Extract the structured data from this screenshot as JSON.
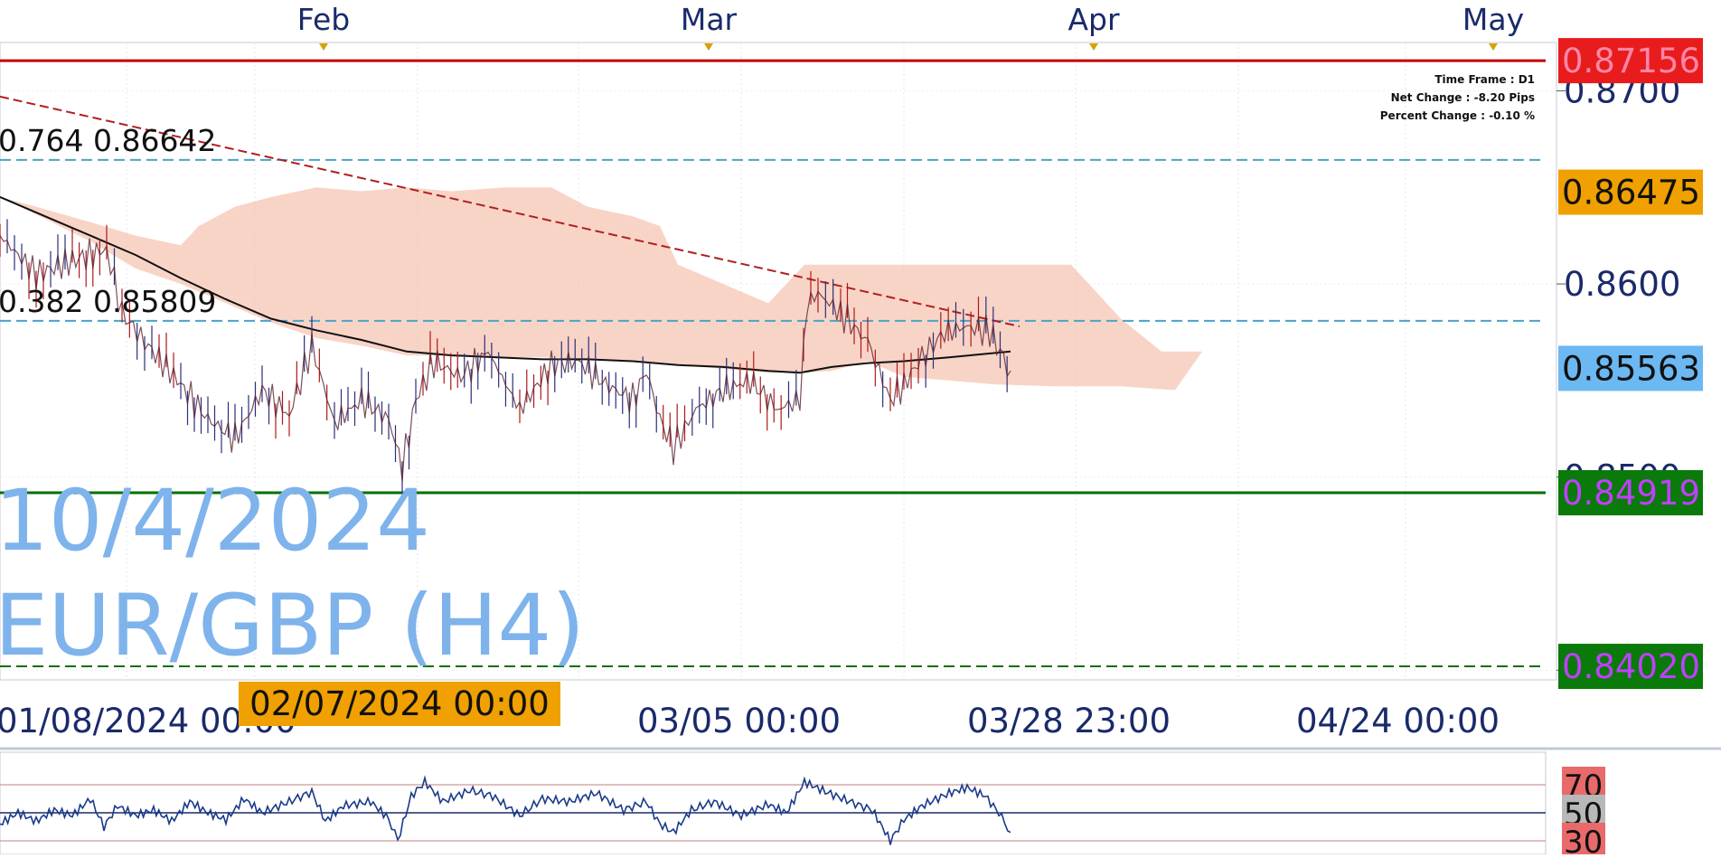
{
  "chart_data": {
    "type": "line",
    "symbol": "EUR/GBP (H4)",
    "date_watermark": "10/4/2024",
    "info": {
      "time_frame": "Time Frame : D1",
      "net_change": "Net Change : -8.20 Pips",
      "percent_change": "Percent Change : -0.10 %"
    },
    "month_labels": [
      "Feb",
      "Mar",
      "Apr",
      "May"
    ],
    "date_ticks": [
      "01/08/2024 00:00",
      "03/05 00:00",
      "03/28 23:00",
      "04/24 00:00"
    ],
    "highlighted_date": "02/07/2024 00:00",
    "price_axis": {
      "min": 0.8395,
      "max": 0.8725,
      "ticks": [
        "0.8400",
        "0.8500",
        "0.8600",
        "0.8700"
      ]
    },
    "price_labels": [
      {
        "value": 0.87156,
        "text": "0.87156",
        "bg": "#e81c1c",
        "fg": "#ff86a6"
      },
      {
        "value": 0.86475,
        "text": "0.86475",
        "bg": "#f0a000",
        "fg": "#111111"
      },
      {
        "value": 0.85563,
        "text": "0.85563",
        "bg": "#6cb8f2",
        "fg": "#111111"
      },
      {
        "value": 0.84919,
        "text": "0.84919",
        "bg": "#0a7a0a",
        "fg": "#c040ff"
      },
      {
        "value": 0.8402,
        "text": "0.84020",
        "bg": "#0a7a0a",
        "fg": "#c040ff"
      }
    ],
    "horizontal_lines": [
      {
        "value": 0.87156,
        "color": "#c00000",
        "style": "solid"
      },
      {
        "value": 0.86642,
        "color": "#4aa3c8",
        "style": "dashed"
      },
      {
        "value": 0.85809,
        "color": "#4aa3c8",
        "style": "dashed"
      },
      {
        "value": 0.84919,
        "color": "#007000",
        "style": "solid"
      },
      {
        "value": 0.8402,
        "color": "#007000",
        "style": "dashed"
      }
    ],
    "fib_labels": [
      {
        "value": 0.86642,
        "text": "0.764 0.86642"
      },
      {
        "value": 0.85809,
        "text": "0.382 0.85809"
      }
    ],
    "trendline": {
      "color": "#b02020",
      "points": [
        [
          0,
          0.8697
        ],
        [
          1128,
          0.8578
        ]
      ]
    },
    "price_series": [
      [
        0,
        0.8625
      ],
      [
        40,
        0.8605
      ],
      [
        80,
        0.8612
      ],
      [
        118,
        0.8618
      ],
      [
        135,
        0.8585
      ],
      [
        160,
        0.857
      ],
      [
        200,
        0.8548
      ],
      [
        230,
        0.853
      ],
      [
        260,
        0.852
      ],
      [
        290,
        0.8545
      ],
      [
        320,
        0.8532
      ],
      [
        345,
        0.8568
      ],
      [
        370,
        0.8528
      ],
      [
        400,
        0.854
      ],
      [
        430,
        0.853
      ],
      [
        445,
        0.8505
      ],
      [
        460,
        0.854
      ],
      [
        480,
        0.856
      ],
      [
        510,
        0.8552
      ],
      [
        540,
        0.8565
      ],
      [
        575,
        0.8535
      ],
      [
        610,
        0.8558
      ],
      [
        640,
        0.856
      ],
      [
        670,
        0.8548
      ],
      [
        700,
        0.854
      ],
      [
        715,
        0.8555
      ],
      [
        730,
        0.853
      ],
      [
        745,
        0.8515
      ],
      [
        770,
        0.8535
      ],
      [
        800,
        0.8545
      ],
      [
        830,
        0.855
      ],
      [
        860,
        0.8535
      ],
      [
        885,
        0.854
      ],
      [
        893,
        0.859
      ],
      [
        905,
        0.8595
      ],
      [
        930,
        0.8585
      ],
      [
        960,
        0.857
      ],
      [
        985,
        0.854
      ],
      [
        1000,
        0.8548
      ],
      [
        1020,
        0.8562
      ],
      [
        1045,
        0.8575
      ],
      [
        1070,
        0.8578
      ],
      [
        1095,
        0.8575
      ],
      [
        1118,
        0.8555
      ]
    ],
    "ma_series": [
      [
        0,
        0.8645
      ],
      [
        50,
        0.8635
      ],
      [
        100,
        0.8625
      ],
      [
        150,
        0.8615
      ],
      [
        200,
        0.8603
      ],
      [
        250,
        0.8592
      ],
      [
        300,
        0.8582
      ],
      [
        350,
        0.8576
      ],
      [
        400,
        0.8571
      ],
      [
        450,
        0.8565
      ],
      [
        500,
        0.8563
      ],
      [
        550,
        0.8562
      ],
      [
        600,
        0.8561
      ],
      [
        650,
        0.8561
      ],
      [
        700,
        0.856
      ],
      [
        750,
        0.8558
      ],
      [
        800,
        0.8557
      ],
      [
        850,
        0.8555
      ],
      [
        885,
        0.8554
      ],
      [
        920,
        0.8557
      ],
      [
        960,
        0.8559
      ],
      [
        1000,
        0.856
      ],
      [
        1050,
        0.8562
      ],
      [
        1118,
        0.8565
      ]
    ],
    "cloud_upper": [
      [
        0,
        0.8645
      ],
      [
        40,
        0.864
      ],
      [
        100,
        0.8632
      ],
      [
        150,
        0.8625
      ],
      [
        200,
        0.862
      ],
      [
        220,
        0.863
      ],
      [
        260,
        0.864
      ],
      [
        300,
        0.8645
      ],
      [
        350,
        0.865
      ],
      [
        400,
        0.8648
      ],
      [
        450,
        0.865
      ],
      [
        500,
        0.8648
      ],
      [
        560,
        0.865
      ],
      [
        610,
        0.865
      ],
      [
        650,
        0.864
      ],
      [
        700,
        0.8635
      ],
      [
        730,
        0.863
      ],
      [
        750,
        0.861
      ],
      [
        800,
        0.86
      ],
      [
        850,
        0.859
      ],
      [
        890,
        0.861
      ],
      [
        1000,
        0.861
      ],
      [
        1100,
        0.861
      ],
      [
        1185,
        0.861
      ],
      [
        1240,
        0.8582
      ],
      [
        1285,
        0.8565
      ],
      [
        1330,
        0.8565
      ],
      [
        1410,
        0.8565
      ]
    ],
    "cloud_lower": [
      [
        0,
        0.8645
      ],
      [
        40,
        0.8636
      ],
      [
        100,
        0.8622
      ],
      [
        150,
        0.8608
      ],
      [
        200,
        0.86
      ],
      [
        250,
        0.859
      ],
      [
        300,
        0.858
      ],
      [
        350,
        0.8572
      ],
      [
        400,
        0.8568
      ],
      [
        450,
        0.8563
      ],
      [
        500,
        0.8563
      ],
      [
        560,
        0.8562
      ],
      [
        610,
        0.8562
      ],
      [
        650,
        0.8561
      ],
      [
        700,
        0.856
      ],
      [
        750,
        0.8558
      ],
      [
        800,
        0.8556
      ],
      [
        850,
        0.8554
      ],
      [
        890,
        0.8554
      ],
      [
        920,
        0.8555
      ],
      [
        960,
        0.856
      ],
      [
        1000,
        0.8552
      ],
      [
        1050,
        0.855
      ],
      [
        1100,
        0.8548
      ],
      [
        1165,
        0.8547
      ],
      [
        1240,
        0.8547
      ],
      [
        1300,
        0.8545
      ],
      [
        1330,
        0.8565
      ],
      [
        1410,
        0.8565
      ]
    ],
    "oscillator": {
      "levels": [
        {
          "value": 70,
          "text": "70",
          "bg": "#e86a6a"
        },
        {
          "value": 50,
          "text": "50",
          "bg": "#b8b8b8"
        },
        {
          "value": 30,
          "text": "30",
          "bg": "#e86a6a"
        }
      ],
      "series": [
        [
          0,
          42
        ],
        [
          20,
          50
        ],
        [
          40,
          44
        ],
        [
          60,
          52
        ],
        [
          80,
          48
        ],
        [
          100,
          60
        ],
        [
          115,
          40
        ],
        [
          130,
          55
        ],
        [
          150,
          48
        ],
        [
          170,
          52
        ],
        [
          190,
          44
        ],
        [
          210,
          58
        ],
        [
          230,
          50
        ],
        [
          250,
          45
        ],
        [
          270,
          60
        ],
        [
          290,
          50
        ],
        [
          320,
          58
        ],
        [
          345,
          65
        ],
        [
          360,
          44
        ],
        [
          380,
          55
        ],
        [
          410,
          58
        ],
        [
          430,
          46
        ],
        [
          440,
          30
        ],
        [
          455,
          62
        ],
        [
          470,
          72
        ],
        [
          490,
          58
        ],
        [
          520,
          66
        ],
        [
          545,
          62
        ],
        [
          575,
          48
        ],
        [
          600,
          60
        ],
        [
          630,
          58
        ],
        [
          660,
          64
        ],
        [
          690,
          52
        ],
        [
          715,
          58
        ],
        [
          730,
          42
        ],
        [
          745,
          36
        ],
        [
          765,
          52
        ],
        [
          790,
          58
        ],
        [
          820,
          48
        ],
        [
          850,
          56
        ],
        [
          870,
          50
        ],
        [
          890,
          72
        ],
        [
          910,
          66
        ],
        [
          940,
          58
        ],
        [
          965,
          52
        ],
        [
          985,
          30
        ],
        [
          1000,
          45
        ],
        [
          1020,
          55
        ],
        [
          1050,
          64
        ],
        [
          1070,
          68
        ],
        [
          1090,
          62
        ],
        [
          1105,
          50
        ],
        [
          1118,
          36
        ]
      ]
    }
  }
}
